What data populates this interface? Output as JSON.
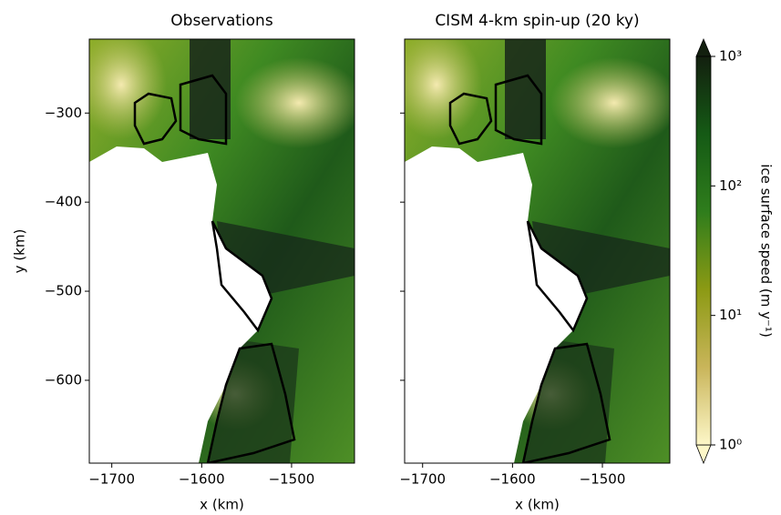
{
  "chart_data": [
    {
      "type": "image",
      "title": "Observations",
      "xlabel": "x (km)",
      "ylabel": "y (km)",
      "xlim": [
        -1725,
        -1430
      ],
      "ylim": [
        -693,
        -217
      ],
      "xticks": [
        {
          "value": -1700,
          "label": "−1700"
        },
        {
          "value": -1600,
          "label": "−1600"
        },
        {
          "value": -1500,
          "label": "−1500"
        }
      ],
      "yticks": [
        {
          "value": -300,
          "label": "−300"
        },
        {
          "value": -400,
          "label": "−400"
        },
        {
          "value": -500,
          "label": "−500"
        },
        {
          "value": -600,
          "label": "−600"
        }
      ]
    },
    {
      "type": "image",
      "title": "CISM 4-km spin-up (20 ky)",
      "xlabel": "x (km)",
      "xlim": [
        -1720,
        -1425
      ],
      "ylim": [
        -693,
        -217
      ],
      "xticks": [
        {
          "value": -1700,
          "label": "−1700"
        },
        {
          "value": -1600,
          "label": "−1600"
        },
        {
          "value": -1500,
          "label": "−1500"
        }
      ],
      "yticks": [
        -300,
        -400,
        -500,
        -600
      ],
      "show_ytick_labels": false
    }
  ],
  "colorbar": {
    "label": "ice surface speed (m y⁻¹)",
    "scale": "log",
    "lim": [
      1,
      1000
    ],
    "ticks": [
      {
        "value": 1,
        "label": "10⁰"
      },
      {
        "value": 10,
        "label": "10¹"
      },
      {
        "value": 100,
        "label": "10²"
      },
      {
        "value": 1000,
        "label": "10³"
      }
    ],
    "colors": [
      "#fdf7c8",
      "#c9b55a",
      "#8c9a14",
      "#2f7d1c",
      "#155a15",
      "#13200f"
    ]
  }
}
